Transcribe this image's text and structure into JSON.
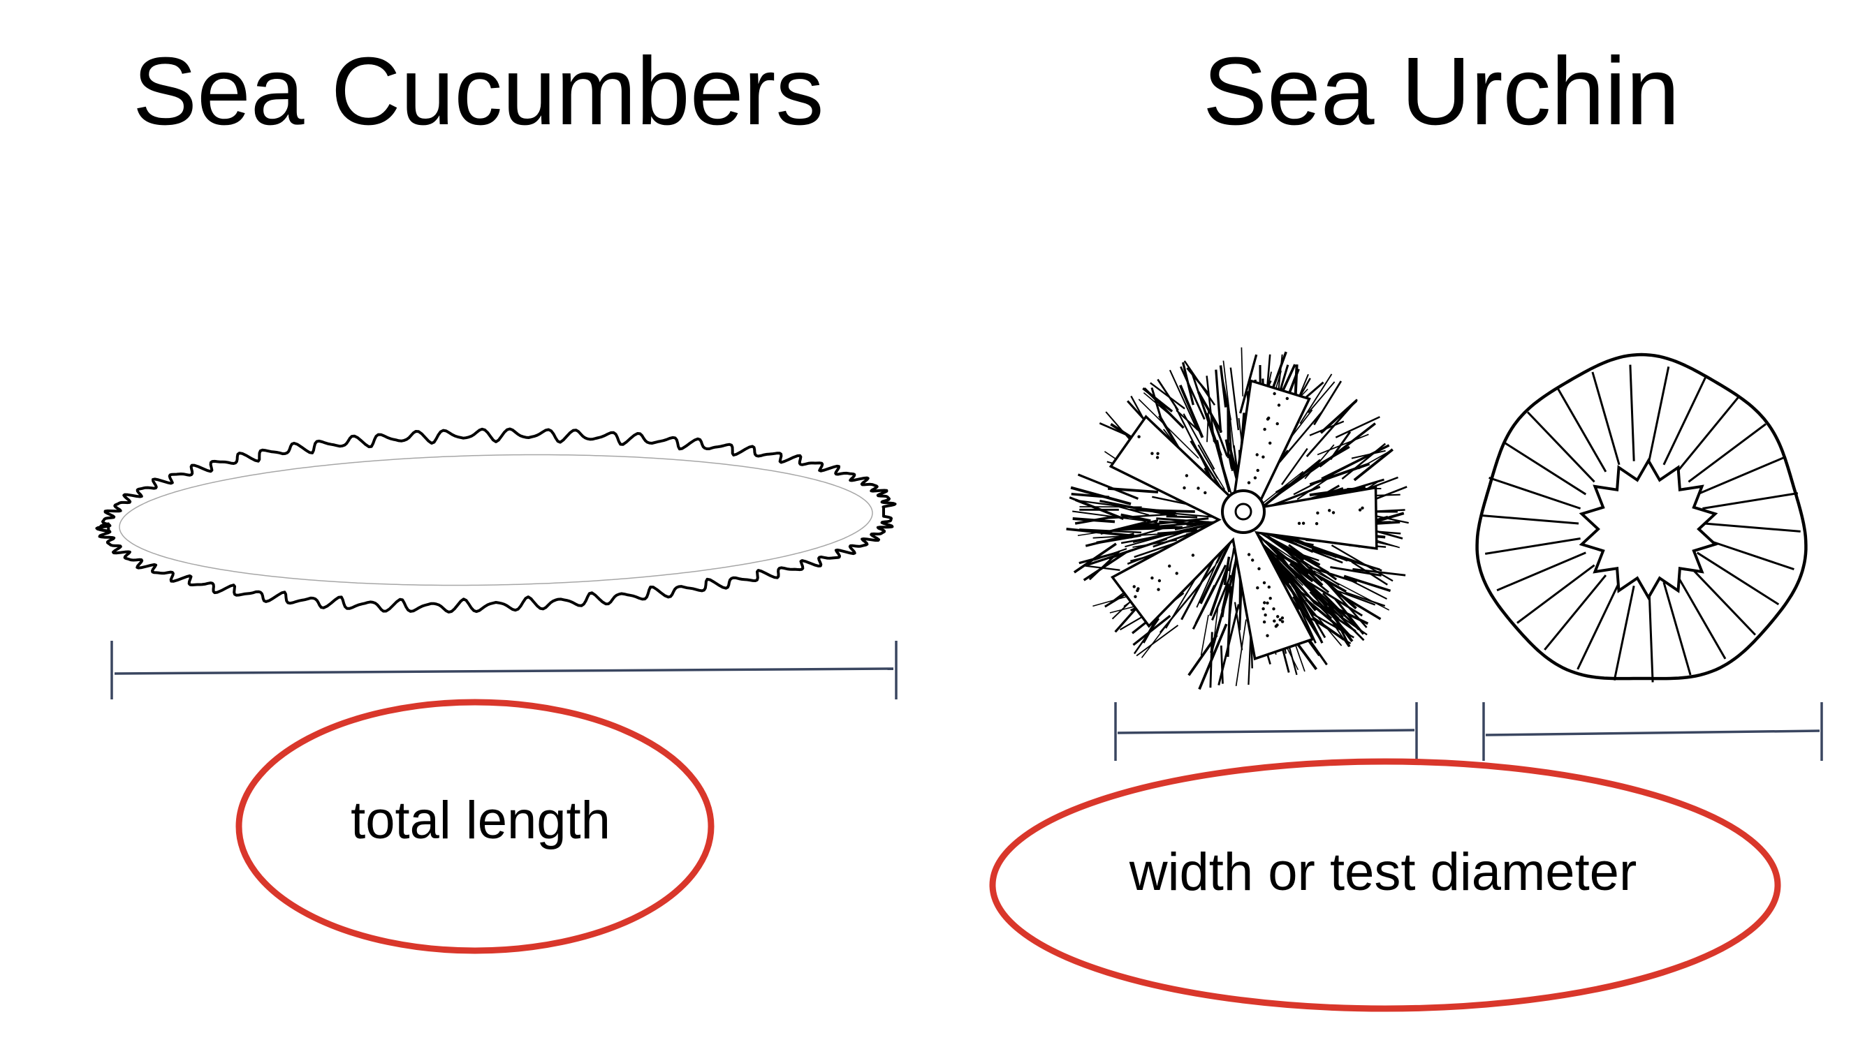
{
  "titles": {
    "left": "Sea Cucumbers",
    "right": "Sea Urchin"
  },
  "labels": {
    "cucumber": "total length",
    "urchin": "width or test diameter"
  },
  "colors": {
    "ink": "#000000",
    "scale_line": "#3a4660",
    "ellipse": "#d9372b",
    "background": "#ffffff"
  },
  "icons": {
    "cucumber": "sea-cucumber-icon",
    "urchin_spiny": "sea-urchin-with-spines-icon",
    "urchin_test": "sea-urchin-test-icon"
  }
}
